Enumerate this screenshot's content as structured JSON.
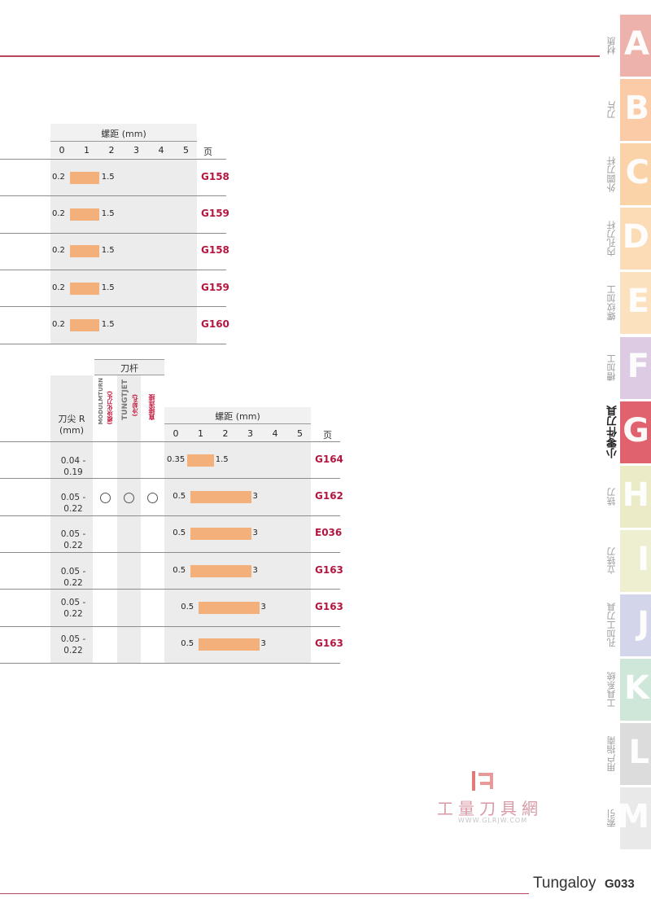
{
  "table1": {
    "pitch_header": "螺距 (mm)",
    "ticks": [
      "0",
      "1",
      "2",
      "3",
      "4",
      "5"
    ],
    "page_header": "页",
    "rows": [
      {
        "min": "0.2",
        "max": "1.5",
        "page": "G158"
      },
      {
        "min": "0.2",
        "max": "1.5",
        "page": "G159"
      },
      {
        "min": "0.2",
        "max": "1.5",
        "page": "G158"
      },
      {
        "min": "0.2",
        "max": "1.5",
        "page": "G159"
      },
      {
        "min": "0.2",
        "max": "1.5",
        "page": "G160"
      }
    ]
  },
  "table2": {
    "holder_header": "刀杆",
    "nose_r_header": "刀尖 R\n(mm)",
    "holder_cols": [
      {
        "brand": "MODULMTURN",
        "note": "(模块化刀头)",
        "color": "#777777"
      },
      {
        "brand": "TUNGTJET",
        "note": "(冷却孔)",
        "color": "#777777"
      },
      {
        "brand": "直接连接",
        "note": "",
        "color": "#c2143a"
      }
    ],
    "pitch_header": "螺距 (mm)",
    "ticks": [
      "0",
      "1",
      "2",
      "3",
      "4",
      "5"
    ],
    "page_header": "页",
    "rows": [
      {
        "r": "0.04 - 0.19",
        "c": [
          false,
          false,
          false
        ],
        "min": "0.35",
        "max": "1.5",
        "page": "G164"
      },
      {
        "r": "0.05 - 0.22",
        "c": [
          true,
          true,
          true
        ],
        "min": "0.5",
        "max": "3",
        "page": "G162"
      },
      {
        "r": "0.05 - 0.22",
        "c": [
          false,
          false,
          false
        ],
        "min": "0.5",
        "max": "3",
        "page": "E036"
      },
      {
        "r": "0.05 - 0.22",
        "c": [
          false,
          false,
          false
        ],
        "min": "0.5",
        "max": "3",
        "page": "G163"
      },
      {
        "r": "0.05 -\n0.22",
        "c": [
          false,
          false,
          false
        ],
        "min": "0.5",
        "max": "3",
        "page": "G163"
      },
      {
        "r": "0.05 -\n0.22",
        "c": [
          false,
          false,
          false
        ],
        "min": "0.5",
        "max": "3",
        "page": "G163"
      }
    ]
  },
  "side_tabs": [
    {
      "letter": "A",
      "label": "材质",
      "color": "#ecb2ab"
    },
    {
      "letter": "B",
      "label": "刀片",
      "color": "#fbcaa6"
    },
    {
      "letter": "C",
      "label": "外圆刀杆",
      "color": "#fbd3a9"
    },
    {
      "letter": "D",
      "label": "内孔刀杆",
      "color": "#fcdcb6"
    },
    {
      "letter": "E",
      "label": "螺纹加工",
      "color": "#fbe1bd"
    },
    {
      "letter": "F",
      "label": "槽加工",
      "color": "#dccbe3"
    },
    {
      "letter": "G",
      "label": "小零件刀具",
      "color": "#e0626e",
      "active": true
    },
    {
      "letter": "H",
      "label": "铣刀",
      "color": "#ebebc7"
    },
    {
      "letter": "I",
      "label": "立铣刀",
      "color": "#eeeed1"
    },
    {
      "letter": "J",
      "label": "孔加工刀具",
      "color": "#d3d5ea"
    },
    {
      "letter": "K",
      "label": "工具系统",
      "color": "#cfe7d8"
    },
    {
      "letter": "L",
      "label": "用户指南",
      "color": "#dcdcdc"
    },
    {
      "letter": "M",
      "label": "索引",
      "color": "#e9e9e9"
    }
  ],
  "watermark": {
    "text": "工量刀具網",
    "sub": "WWW.GLRJW.COM"
  },
  "footer": {
    "brand": "Tungaloy",
    "page": "G033"
  }
}
